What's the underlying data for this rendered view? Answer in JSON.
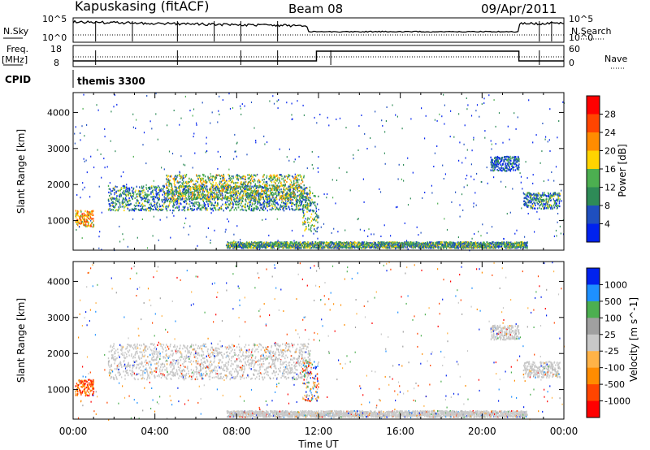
{
  "header": {
    "station": "Kapuskasing (fitACF)",
    "beam": "Beam 08",
    "date": "09/Apr/2011"
  },
  "summary": {
    "nsky_label": "N.Sky",
    "nsearch_label": "N.Search",
    "freq_label_1": "Freq.",
    "freq_label_2": "[MHz]",
    "nave_label": "Nave",
    "cpid_label": "CPID",
    "cpid_value": "themis 3300",
    "log_ticks": [
      "10^5",
      "10^0"
    ],
    "freq_ticks": [
      "18",
      "8"
    ],
    "nave_ticks": [
      "60",
      "0"
    ]
  },
  "colors": {
    "power": [
      "#0022ee",
      "#1f4fbf",
      "#2e8b57",
      "#4caf50",
      "#ffd400",
      "#ff8c00",
      "#ff4500",
      "#ff0000"
    ],
    "velocity": [
      "#ff0000",
      "#ff4500",
      "#ff8c00",
      "#ffb347",
      "#c8c8c8",
      "#a0a0a0",
      "#4caf50",
      "#1e90ff",
      "#0022ee"
    ],
    "ground_scatter": "#c8c8c8"
  },
  "chart_data": [
    {
      "type": "heatmap",
      "panel": "power",
      "xlabel": "",
      "ylabel": "Slant Range [km]",
      "x_ticks": [
        "00:00",
        "04:00",
        "08:00",
        "12:00",
        "16:00",
        "20:00",
        "00:00"
      ],
      "xlim_hours": [
        0,
        24
      ],
      "ylim": [
        180,
        4550
      ],
      "y_ticks": [
        "1000",
        "2000",
        "3000",
        "4000"
      ],
      "y_tick_values": [
        1000,
        2000,
        3000,
        4000
      ],
      "colorbar_label": "Power [dB]",
      "colorbar_ticks": [
        "28",
        "24",
        "20",
        "16",
        "12",
        "8",
        "4"
      ],
      "colorbar_range": [
        0,
        32
      ],
      "echo_regions": [
        {
          "t0": 0.1,
          "t1": 1.0,
          "r0": 850,
          "r1": 1300,
          "level": 0.65
        },
        {
          "t0": 1.7,
          "t1": 11.6,
          "r0": 1300,
          "r1": 2000,
          "level": 0.3
        },
        {
          "t0": 4.5,
          "t1": 11.3,
          "r0": 1600,
          "r1": 2300,
          "level": 0.45
        },
        {
          "t0": 11.2,
          "t1": 12.0,
          "r0": 700,
          "r1": 1800,
          "level": 0.4
        },
        {
          "t0": 7.5,
          "t1": 22.2,
          "r0": 260,
          "r1": 430,
          "level": 0.35
        },
        {
          "t0": 20.4,
          "t1": 21.8,
          "r0": 2400,
          "r1": 2800,
          "level": 0.2
        },
        {
          "t0": 22.0,
          "t1": 23.8,
          "r0": 1350,
          "r1": 1800,
          "level": 0.3
        }
      ]
    },
    {
      "type": "heatmap",
      "panel": "velocity",
      "xlabel": "Time UT",
      "ylabel": "Slant Range [km]",
      "x_ticks": [
        "00:00",
        "04:00",
        "08:00",
        "12:00",
        "16:00",
        "20:00",
        "00:00"
      ],
      "xlim_hours": [
        0,
        24
      ],
      "ylim": [
        180,
        4550
      ],
      "y_ticks": [
        "1000",
        "2000",
        "3000",
        "4000"
      ],
      "y_tick_values": [
        1000,
        2000,
        3000,
        4000
      ],
      "colorbar_label": "Velocity [m s^-1]",
      "colorbar_ticks": [
        "1000",
        "500",
        "100",
        "25",
        "-25",
        "-100",
        "-500",
        "-1000"
      ],
      "echo_regions": [
        {
          "t0": 0.1,
          "t1": 1.0,
          "r0": 850,
          "r1": 1300,
          "kind": "negative"
        },
        {
          "t0": 1.7,
          "t1": 11.6,
          "r0": 1300,
          "r1": 2300,
          "kind": "ground"
        },
        {
          "t0": 11.2,
          "t1": 12.0,
          "r0": 700,
          "r1": 1800,
          "kind": "mixed"
        },
        {
          "t0": 7.5,
          "t1": 22.2,
          "r0": 260,
          "r1": 430,
          "kind": "ground"
        },
        {
          "t0": 20.4,
          "t1": 21.8,
          "r0": 2400,
          "r1": 2800,
          "kind": "ground"
        },
        {
          "t0": 22.0,
          "t1": 23.8,
          "r0": 1350,
          "r1": 1800,
          "kind": "ground"
        }
      ]
    }
  ]
}
